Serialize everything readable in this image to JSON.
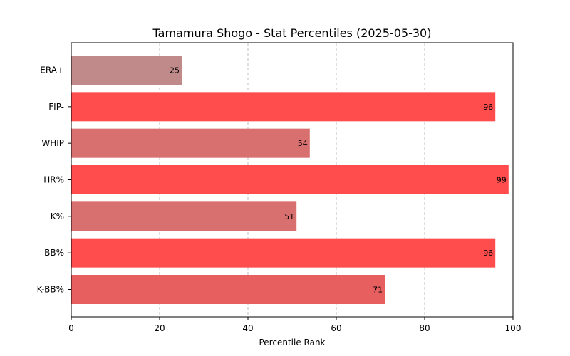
{
  "chart_data": {
    "type": "bar",
    "orientation": "horizontal",
    "title": "Tamamura Shogo - Stat Percentiles (2025-05-30)",
    "xlabel": "Percentile Rank",
    "ylabel": "",
    "xlim": [
      0,
      100
    ],
    "xticks": [
      0,
      20,
      40,
      60,
      80,
      100
    ],
    "grid": "x-dashed",
    "categories": [
      "ERA+",
      "FIP-",
      "WHIP",
      "HR%",
      "K%",
      "BB%",
      "K-BB%"
    ],
    "values": [
      25,
      96,
      54,
      99,
      51,
      96,
      71
    ],
    "colors": [
      "#c08a8a",
      "#ff4d4d",
      "#d97070",
      "#ff4d4d",
      "#d97070",
      "#ff4d4d",
      "#e85f5f"
    ]
  }
}
